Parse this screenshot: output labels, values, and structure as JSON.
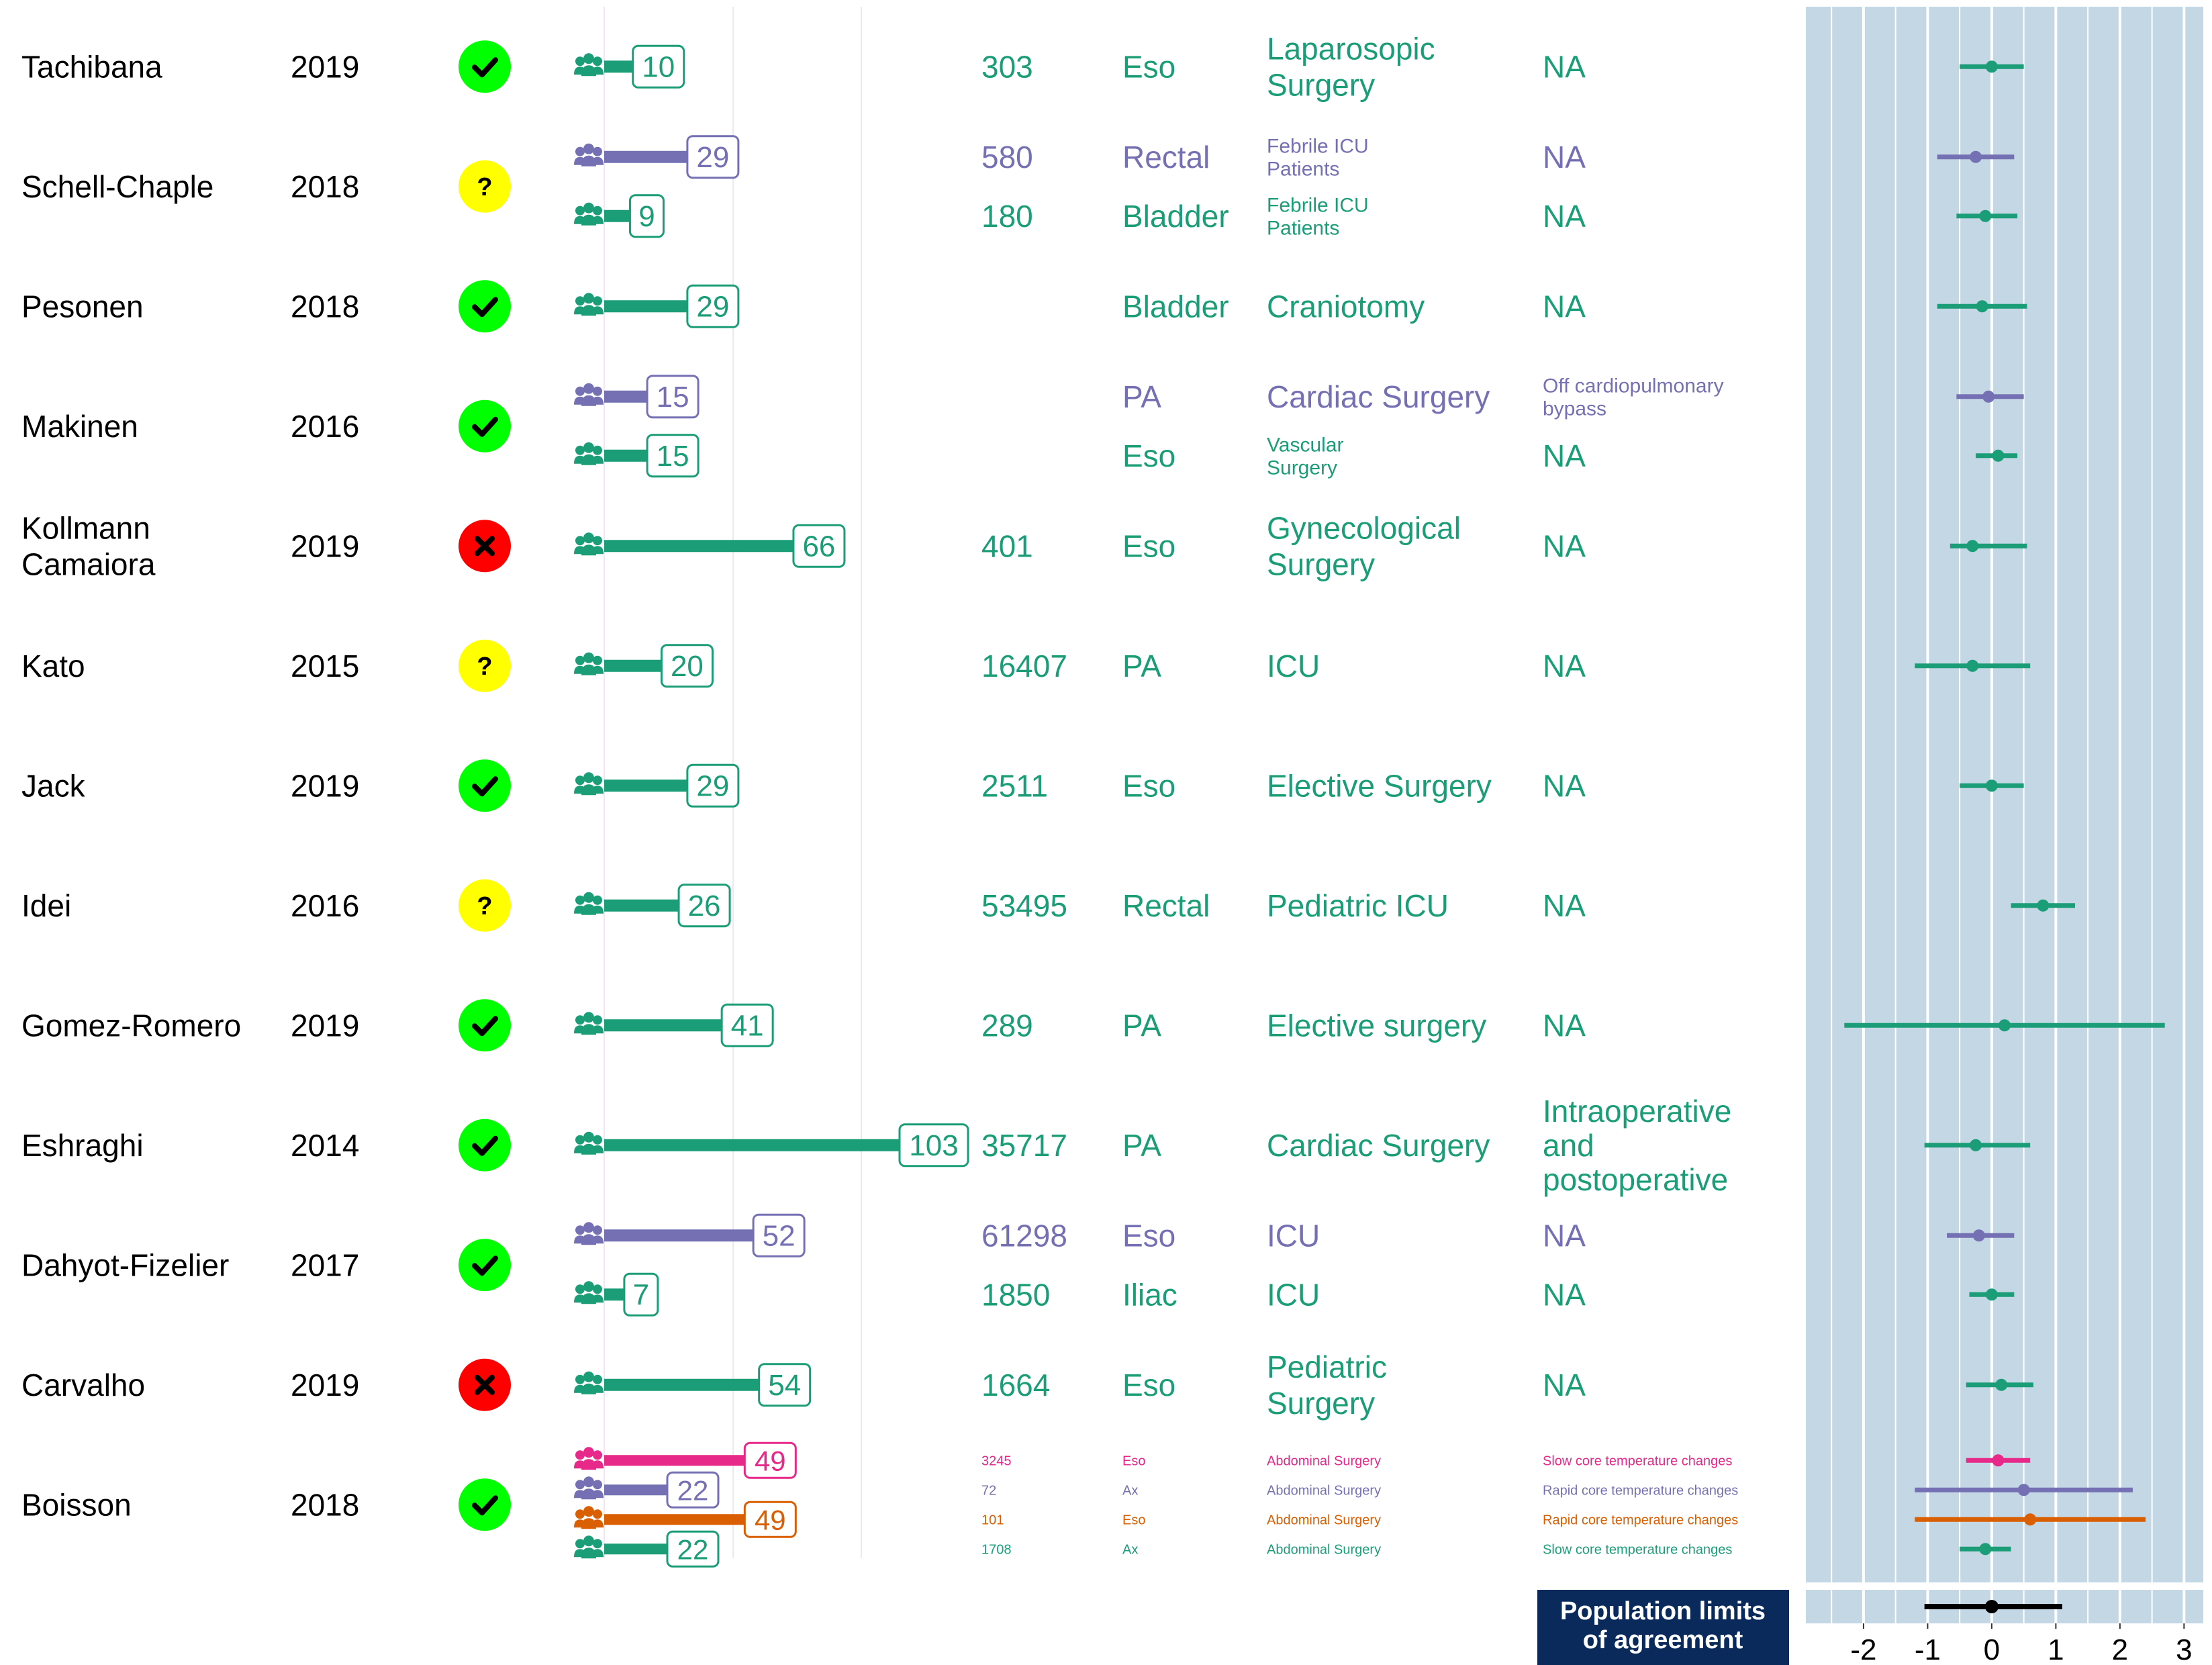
{
  "colors": {
    "green": "#1b9e77",
    "purple": "#7570b3",
    "pink": "#e7298a",
    "orange": "#d95f02",
    "panel_bg": "#c3d7e5",
    "banner_bg": "#0b2a5c",
    "quality_good": "#00ff00",
    "quality_unclear": "#ffff00",
    "quality_bad": "#ff0000"
  },
  "icons": {
    "quality_good": "check-icon",
    "quality_unclear": "question-icon",
    "quality_bad": "cross-icon",
    "participants": "people-group-icon"
  },
  "chart_data": {
    "type": "forest",
    "x_ticks": [
      "-2",
      "-1",
      "0",
      "1",
      "2",
      "3"
    ],
    "xlim": [
      -2.9,
      3.3
    ],
    "bar_max_participants": 103,
    "studies": [
      {
        "author": "Tachibana",
        "year": "2019",
        "quality": "good",
        "rows": [
          {
            "n": 10,
            "measurements": "303",
            "site": "Eso",
            "population": "Laparosopic Surgery",
            "context": "NA",
            "color": "#1b9e77",
            "bias": 0.0,
            "loa": [
              -0.5,
              0.5
            ],
            "text_size": "large"
          }
        ]
      },
      {
        "author": "Schell-Chaple",
        "year": "2018",
        "quality": "unclear",
        "rows": [
          {
            "n": 29,
            "measurements": "580",
            "site": "Rectal",
            "population": "Febrile ICU Patients",
            "context": "NA",
            "color": "#7570b3",
            "bias": -0.25,
            "loa": [
              -0.85,
              0.35
            ],
            "text_size": "large",
            "population_size": "small"
          },
          {
            "n": 9,
            "measurements": "180",
            "site": "Bladder",
            "population": "Febrile ICU Patients",
            "context": "NA",
            "color": "#1b9e77",
            "bias": -0.1,
            "loa": [
              -0.55,
              0.4
            ],
            "text_size": "large",
            "population_size": "small"
          }
        ]
      },
      {
        "author": "Pesonen",
        "year": "2018",
        "quality": "good",
        "rows": [
          {
            "n": 29,
            "measurements": "",
            "site": "Bladder",
            "population": "Craniotomy",
            "context": "NA",
            "color": "#1b9e77",
            "bias": -0.15,
            "loa": [
              -0.85,
              0.55
            ],
            "text_size": "large"
          }
        ]
      },
      {
        "author": "Makinen",
        "year": "2016",
        "quality": "good",
        "rows": [
          {
            "n": 15,
            "measurements": "",
            "site": "PA",
            "population": "Cardiac Surgery",
            "context": "Off cardiopulmonary bypass",
            "color": "#7570b3",
            "bias": -0.05,
            "loa": [
              -0.55,
              0.5
            ],
            "text_size": "large",
            "context_size": "small"
          },
          {
            "n": 15,
            "measurements": "",
            "site": "Eso",
            "population": "Vascular Surgery",
            "context": "NA",
            "color": "#1b9e77",
            "bias": 0.1,
            "loa": [
              -0.25,
              0.4
            ],
            "text_size": "large",
            "population_size": "small"
          }
        ]
      },
      {
        "author": "Kollmann Camaiora",
        "year": "2019",
        "quality": "bad",
        "rows": [
          {
            "n": 66,
            "measurements": "401",
            "site": "Eso",
            "population": "Gynecological Surgery",
            "context": "NA",
            "color": "#1b9e77",
            "bias": -0.3,
            "loa": [
              -0.65,
              0.55
            ],
            "text_size": "large"
          }
        ]
      },
      {
        "author": "Kato",
        "year": "2015",
        "quality": "unclear",
        "rows": [
          {
            "n": 20,
            "measurements": "16407",
            "site": "PA",
            "population": "ICU",
            "context": "NA",
            "color": "#1b9e77",
            "bias": -0.3,
            "loa": [
              -1.2,
              0.6
            ],
            "text_size": "large"
          }
        ]
      },
      {
        "author": "Jack",
        "year": "2019",
        "quality": "good",
        "rows": [
          {
            "n": 29,
            "measurements": "2511",
            "site": "Eso",
            "population": "Elective Surgery",
            "context": "NA",
            "color": "#1b9e77",
            "bias": 0.0,
            "loa": [
              -0.5,
              0.5
            ],
            "text_size": "large"
          }
        ]
      },
      {
        "author": "Idei",
        "year": "2016",
        "quality": "unclear",
        "rows": [
          {
            "n": 26,
            "measurements": "53495",
            "site": "Rectal",
            "population": "Pediatric ICU",
            "context": "NA",
            "color": "#1b9e77",
            "bias": 0.8,
            "loa": [
              0.3,
              1.3
            ],
            "text_size": "large"
          }
        ]
      },
      {
        "author": "Gomez-Romero",
        "year": "2019",
        "quality": "good",
        "rows": [
          {
            "n": 41,
            "measurements": "289",
            "site": "PA",
            "population": "Elective surgery",
            "context": "NA",
            "color": "#1b9e77",
            "bias": 0.2,
            "loa": [
              -2.3,
              2.7
            ],
            "text_size": "large"
          }
        ]
      },
      {
        "author": "Eshraghi",
        "year": "2014",
        "quality": "good",
        "rows": [
          {
            "n": 103,
            "measurements": "35717",
            "site": "PA",
            "population": "Cardiac Surgery",
            "context": "Intraoperative and postoperative",
            "color": "#1b9e77",
            "bias": -0.25,
            "loa": [
              -1.05,
              0.6
            ],
            "text_size": "large"
          }
        ]
      },
      {
        "author": "Dahyot-Fizelier",
        "year": "2017",
        "quality": "good",
        "rows": [
          {
            "n": 52,
            "measurements": "61298",
            "site": "Eso",
            "population": "ICU",
            "context": "NA",
            "color": "#7570b3",
            "bias": -0.2,
            "loa": [
              -0.7,
              0.35
            ],
            "text_size": "large"
          },
          {
            "n": 7,
            "measurements": "1850",
            "site": "Iliac",
            "population": "ICU",
            "context": "NA",
            "color": "#1b9e77",
            "bias": 0.0,
            "loa": [
              -0.35,
              0.35
            ],
            "text_size": "large"
          }
        ]
      },
      {
        "author": "Carvalho",
        "year": "2019",
        "quality": "bad",
        "rows": [
          {
            "n": 54,
            "measurements": "1664",
            "site": "Eso",
            "population": "Pediatric Surgery",
            "context": "NA",
            "color": "#1b9e77",
            "bias": 0.15,
            "loa": [
              -0.4,
              0.65
            ],
            "text_size": "large"
          }
        ]
      },
      {
        "author": "Boisson",
        "year": "2018",
        "quality": "good",
        "rows": [
          {
            "n": 49,
            "measurements": "3245",
            "site": "Eso",
            "population": "Abdominal Surgery",
            "context": "Slow core temperature changes",
            "color": "#e7298a",
            "bias": 0.1,
            "loa": [
              -0.4,
              0.6
            ],
            "text_size": "tiny"
          },
          {
            "n": 22,
            "measurements": "72",
            "site": "Ax",
            "population": "Abdominal Surgery",
            "context": "Rapid core temperature changes",
            "color": "#7570b3",
            "bias": 0.5,
            "loa": [
              -1.2,
              2.2
            ],
            "text_size": "tiny"
          },
          {
            "n": 49,
            "measurements": "101",
            "site": "Eso",
            "population": "Abdominal Surgery",
            "context": "Rapid core temperature changes",
            "color": "#d95f02",
            "bias": 0.6,
            "loa": [
              -1.2,
              2.4
            ],
            "text_size": "tiny"
          },
          {
            "n": 22,
            "measurements": "1708",
            "site": "Ax",
            "population": "Abdominal Surgery",
            "context": "Slow core temperature changes",
            "color": "#1b9e77",
            "bias": -0.1,
            "loa": [
              -0.5,
              0.3
            ],
            "text_size": "tiny"
          }
        ]
      }
    ],
    "pooled": {
      "label": "Population limits of agreement",
      "bias": 0.0,
      "loa": [
        -1.05,
        1.1
      ],
      "color": "#000000"
    }
  }
}
